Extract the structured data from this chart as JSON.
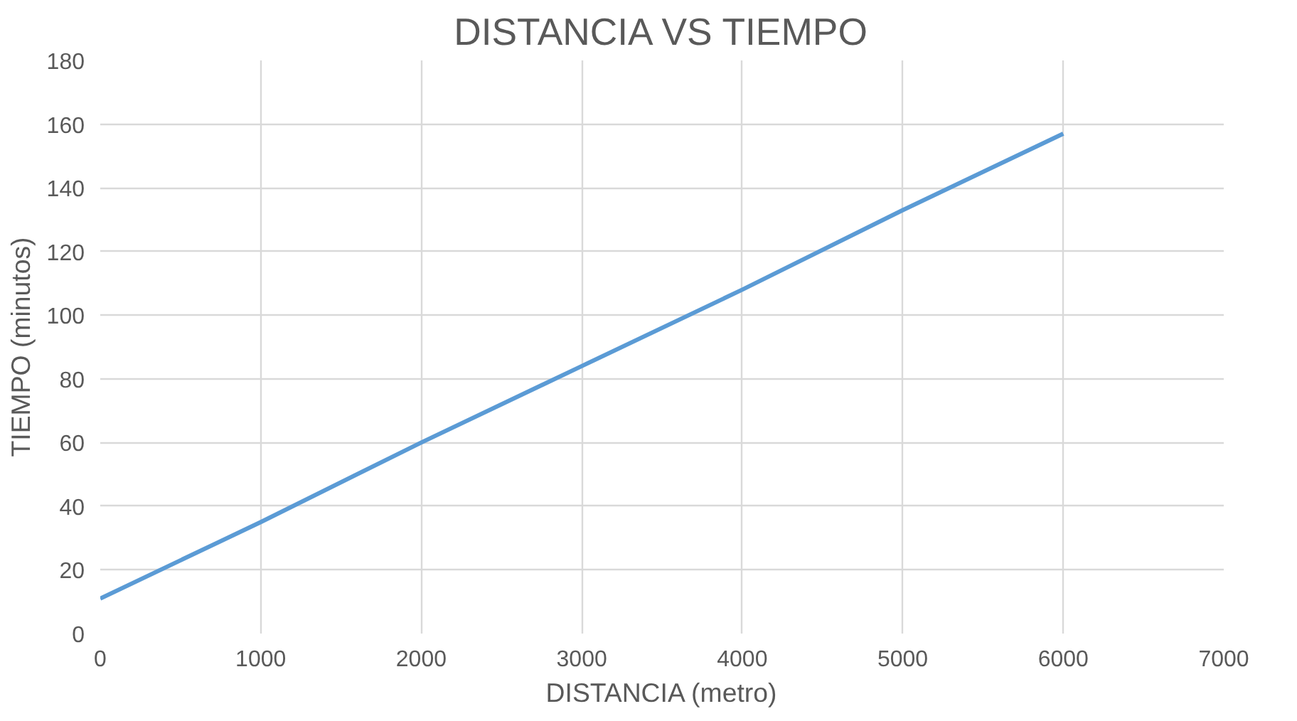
{
  "chart_data": {
    "type": "line",
    "title": "DISTANCIA VS TIEMPO",
    "xlabel": "DISTANCIA (metro)",
    "ylabel": "TIEMPO (minutos)",
    "x": [
      0,
      1000,
      2000,
      3000,
      4000,
      5000,
      6000
    ],
    "series": [
      {
        "color": "#5b9bd5",
        "values": [
          11,
          35,
          60,
          84,
          108,
          133,
          157
        ]
      }
    ],
    "xlim": [
      0,
      7000
    ],
    "xticks": [
      0,
      1000,
      2000,
      3000,
      4000,
      5000,
      6000,
      7000
    ],
    "ylim": [
      0,
      180
    ],
    "yticks": [
      0,
      20,
      40,
      60,
      80,
      100,
      120,
      140,
      160,
      180
    ],
    "grid": true,
    "marker": "none",
    "line_style": "solid"
  }
}
